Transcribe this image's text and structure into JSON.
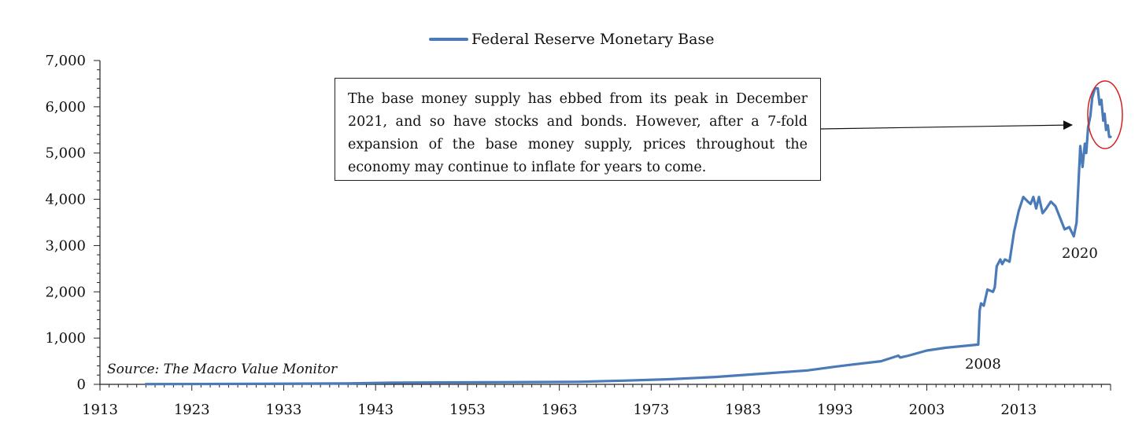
{
  "legend": {
    "series_label": "Federal Reserve Monetary Base"
  },
  "source": "Source: The Macro Value Monitor",
  "callout": {
    "text": "The base money supply has ebbed from its peak in December 2021, and so have stocks and bonds.  However, after a 7-fold expansion of the base money supply, prices throughout the economy may continue to inflate for years to come."
  },
  "annotations": {
    "a2008": "2008",
    "a2020": "2020"
  },
  "colors": {
    "series": "#4a7ab8",
    "highlight": "#d62020",
    "axis": "#222222"
  },
  "chart_data": {
    "type": "line",
    "title": "",
    "xlabel": "",
    "ylabel": "",
    "xlim": [
      1913,
      2023
    ],
    "ylim": [
      0,
      7000
    ],
    "x_ticks": [
      "1913",
      "1923",
      "1933",
      "1943",
      "1953",
      "1963",
      "1973",
      "1983",
      "1993",
      "2003",
      "2013"
    ],
    "y_ticks": [
      "0",
      "1,000",
      "2,000",
      "3,000",
      "4,000",
      "5,000",
      "6,000",
      "7,000"
    ],
    "legend_position": "top",
    "series": [
      {
        "name": "Federal Reserve Monetary Base",
        "x": [
          1918,
          1930,
          1940,
          1945,
          1950,
          1955,
          1960,
          1965,
          1970,
          1975,
          1980,
          1985,
          1990,
          1993,
          1995,
          1998,
          1999.9,
          2000.1,
          2001,
          2003,
          2005,
          2008.6,
          2008.75,
          2008.9,
          2009.2,
          2009.6,
          2010.2,
          2010.4,
          2010.6,
          2011.0,
          2011.2,
          2011.5,
          2012.0,
          2012.5,
          2013.0,
          2013.5,
          2014.0,
          2014.3,
          2014.6,
          2014.9,
          2015.2,
          2015.6,
          2016.0,
          2016.5,
          2017.0,
          2017.5,
          2018.0,
          2018.5,
          2019.0,
          2019.3,
          2019.7,
          2019.95,
          2020.2,
          2020.35,
          2020.55,
          2020.8,
          2021.0,
          2021.3,
          2021.6,
          2021.8,
          2022.0,
          2022.2,
          2022.35,
          2022.5,
          2022.7,
          2022.85,
          2023.0
        ],
        "values": [
          5,
          10,
          20,
          35,
          40,
          45,
          50,
          55,
          80,
          110,
          160,
          230,
          300,
          380,
          430,
          500,
          620,
          580,
          620,
          730,
          790,
          860,
          1600,
          1750,
          1700,
          2050,
          2000,
          2100,
          2550,
          2700,
          2600,
          2700,
          2650,
          3300,
          3750,
          4050,
          3950,
          3900,
          4050,
          3800,
          4050,
          3700,
          3800,
          3950,
          3850,
          3600,
          3350,
          3400,
          3200,
          3500,
          5150,
          4700,
          5200,
          5000,
          5550,
          5800,
          6200,
          6400,
          6400,
          6050,
          6150,
          5700,
          5850,
          5500,
          5600,
          5350,
          5350
        ]
      }
    ]
  }
}
